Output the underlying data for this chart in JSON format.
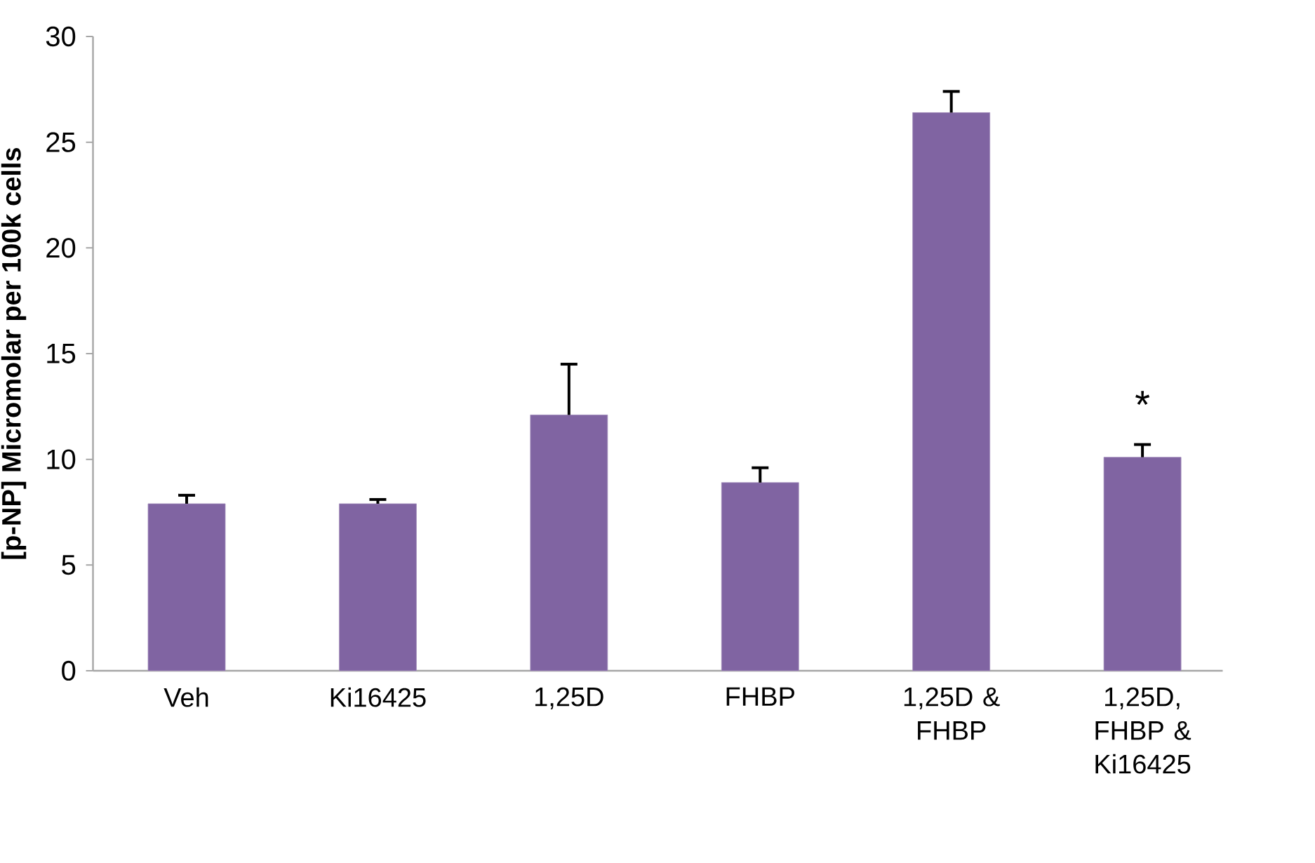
{
  "chart_data": {
    "type": "bar",
    "ylabel": "[p-NP] Micromolar per 100k cells",
    "categories": [
      "Veh",
      "Ki16425",
      "1,25D",
      "FHBP",
      "1,25D & FHBP",
      "1,25D, FHBP & Ki16425"
    ],
    "values": [
      7.9,
      7.9,
      12.1,
      8.9,
      26.4,
      10.1
    ],
    "errors": [
      [
        7.9,
        8.3
      ],
      [
        7.9,
        8.1
      ],
      [
        12.1,
        14.5
      ],
      [
        8.9,
        9.6
      ],
      [
        26.4,
        27.4
      ],
      [
        10.1,
        10.7
      ]
    ],
    "color": "#8064a2",
    "ylim": [
      0,
      30
    ],
    "yticks": [
      0,
      5,
      10,
      15,
      20,
      25,
      30
    ],
    "annotations": [
      "*"
    ]
  }
}
